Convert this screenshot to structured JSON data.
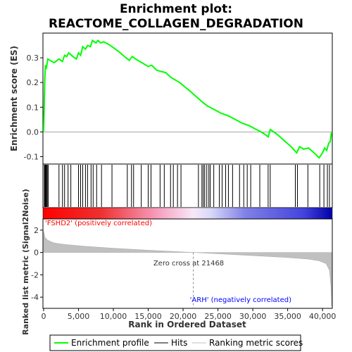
{
  "chart_data": {
    "type": "line",
    "title_line1": "Enrichment plot:",
    "title_line2": "REACTOME_COLLAGEN_DEGRADATION",
    "es_panel": {
      "ylabel": "Enrichment score (ES)",
      "ylim": [
        -0.13,
        0.4
      ],
      "yticks": [
        -0.1,
        0.0,
        0.1,
        0.2,
        0.3
      ],
      "ytick_labels": [
        "-0.1",
        "0.0",
        "0.1",
        "0.2",
        "0.3"
      ],
      "line_color": "#00ff00",
      "profile": [
        [
          0,
          0.0
        ],
        [
          50,
          0.07
        ],
        [
          150,
          0.2
        ],
        [
          250,
          0.27
        ],
        [
          400,
          0.26
        ],
        [
          600,
          0.295
        ],
        [
          1500,
          0.28
        ],
        [
          2200,
          0.295
        ],
        [
          2700,
          0.285
        ],
        [
          3000,
          0.31
        ],
        [
          3300,
          0.305
        ],
        [
          3600,
          0.32
        ],
        [
          4200,
          0.305
        ],
        [
          4700,
          0.295
        ],
        [
          5000,
          0.32
        ],
        [
          5300,
          0.31
        ],
        [
          5600,
          0.345
        ],
        [
          6000,
          0.335
        ],
        [
          6300,
          0.35
        ],
        [
          6700,
          0.345
        ],
        [
          7000,
          0.37
        ],
        [
          7500,
          0.36
        ],
        [
          7800,
          0.37
        ],
        [
          8200,
          0.36
        ],
        [
          8600,
          0.365
        ],
        [
          9300,
          0.355
        ],
        [
          9800,
          0.345
        ],
        [
          10300,
          0.335
        ],
        [
          11000,
          0.32
        ],
        [
          11800,
          0.3
        ],
        [
          12300,
          0.29
        ],
        [
          12700,
          0.305
        ],
        [
          13200,
          0.295
        ],
        [
          13800,
          0.285
        ],
        [
          14400,
          0.275
        ],
        [
          15000,
          0.265
        ],
        [
          15500,
          0.27
        ],
        [
          16200,
          0.25
        ],
        [
          16800,
          0.245
        ],
        [
          17500,
          0.24
        ],
        [
          18300,
          0.22
        ],
        [
          19500,
          0.2
        ],
        [
          21000,
          0.165
        ],
        [
          22000,
          0.14
        ],
        [
          22800,
          0.12
        ],
        [
          23500,
          0.105
        ],
        [
          24500,
          0.09
        ],
        [
          25500,
          0.075
        ],
        [
          26500,
          0.065
        ],
        [
          27500,
          0.05
        ],
        [
          28500,
          0.035
        ],
        [
          29500,
          0.025
        ],
        [
          30500,
          0.01
        ],
        [
          31500,
          -0.005
        ],
        [
          32200,
          -0.02
        ],
        [
          32500,
          0.01
        ],
        [
          33500,
          -0.01
        ],
        [
          34500,
          -0.035
        ],
        [
          35500,
          -0.06
        ],
        [
          36300,
          -0.085
        ],
        [
          36700,
          -0.06
        ],
        [
          37300,
          -0.07
        ],
        [
          38000,
          -0.065
        ],
        [
          38800,
          -0.085
        ],
        [
          39500,
          -0.105
        ],
        [
          40000,
          -0.085
        ],
        [
          40300,
          -0.065
        ],
        [
          40600,
          -0.075
        ],
        [
          40900,
          -0.045
        ],
        [
          41100,
          -0.04
        ],
        [
          41300,
          0.0
        ]
      ]
    },
    "hits": [
      100,
      180,
      260,
      330,
      420,
      520,
      650,
      2200,
      2700,
      3000,
      3500,
      3900,
      5000,
      5300,
      5600,
      6000,
      6300,
      6800,
      7100,
      7600,
      8300,
      9800,
      12000,
      12600,
      12900,
      14000,
      15000,
      15400,
      16700,
      17300,
      18200,
      18600,
      19200,
      19700,
      22200,
      22700,
      22900,
      23100,
      23400,
      23700,
      23900,
      24400,
      25200,
      25600,
      26100,
      26500,
      27100,
      28100,
      28700,
      29200,
      29700,
      31000,
      32200,
      32500,
      36100,
      36400,
      37900,
      39600,
      40200,
      40700,
      41000
    ],
    "ranked_metric": {
      "ylabel": "Ranked list metric (Signal2Noise)",
      "ylim": [
        -5,
        3
      ],
      "yticks": [
        -4,
        -2,
        0,
        2
      ],
      "ytick_labels": [
        "-4",
        "-2",
        "0",
        "2"
      ],
      "zero_cross": 21468,
      "zero_cross_label": "Zero cross at 21468",
      "pos_label": "'FSHD2' (positively correlated)",
      "neg_label": "'ARH' (negatively correlated)",
      "pos_color": "#ff0000",
      "neg_color": "#0000ff",
      "profile": [
        [
          0,
          1.9
        ],
        [
          200,
          1.35
        ],
        [
          600,
          1.1
        ],
        [
          1500,
          0.85
        ],
        [
          3000,
          0.72
        ],
        [
          6000,
          0.55
        ],
        [
          10000,
          0.38
        ],
        [
          15000,
          0.2
        ],
        [
          21468,
          0.0
        ],
        [
          26000,
          -0.15
        ],
        [
          30000,
          -0.28
        ],
        [
          35000,
          -0.45
        ],
        [
          38000,
          -0.6
        ],
        [
          39500,
          -0.75
        ],
        [
          40500,
          -1.0
        ],
        [
          41000,
          -1.6
        ],
        [
          41200,
          -3.0
        ],
        [
          41300,
          -4.8
        ]
      ]
    },
    "xlabel": "Rank in Ordered Dataset",
    "xlim": [
      0,
      41300
    ],
    "xticks": [
      0,
      5000,
      10000,
      15000,
      20000,
      25000,
      30000,
      35000,
      40000
    ],
    "xtick_labels": [
      "0",
      "5,000",
      "10,000",
      "15,000",
      "20,000",
      "25,000",
      "30,000",
      "35,000",
      "40,000"
    ],
    "legend": {
      "placement": "bottom",
      "entries": [
        {
          "label": "Enrichment profile",
          "color": "#00ff00"
        },
        {
          "label": "Hits",
          "color": "#000000"
        },
        {
          "label": "Ranking metric scores",
          "color": "#c0c0c0"
        }
      ]
    }
  }
}
